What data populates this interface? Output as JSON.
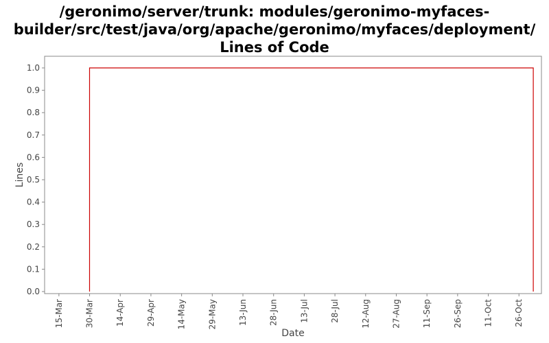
{
  "chart_data": {
    "type": "line",
    "title": "/geronimo/server/trunk: modules/geronimo-myfaces-builder/src/test/java/org/apache/geronimo/myfaces/deployment/ Lines of Code",
    "xlabel": "Date",
    "ylabel": "Lines",
    "ylim": [
      0,
      1.0
    ],
    "yticks": [
      "0.0",
      "0.1",
      "0.2",
      "0.3",
      "0.4",
      "0.5",
      "0.6",
      "0.7",
      "0.8",
      "0.9",
      "1.0"
    ],
    "xlim": [
      "2007-03-08",
      "2007-11-06"
    ],
    "xticks": [
      {
        "date": "2007-03-15",
        "label": "15-Mar"
      },
      {
        "date": "2007-03-30",
        "label": "30-Mar"
      },
      {
        "date": "2007-04-14",
        "label": "14-Apr"
      },
      {
        "date": "2007-04-29",
        "label": "29-Apr"
      },
      {
        "date": "2007-05-14",
        "label": "14-May"
      },
      {
        "date": "2007-05-29",
        "label": "29-May"
      },
      {
        "date": "2007-06-13",
        "label": "13-Jun"
      },
      {
        "date": "2007-06-28",
        "label": "28-Jun"
      },
      {
        "date": "2007-07-13",
        "label": "13-Jul"
      },
      {
        "date": "2007-07-28",
        "label": "28-Jul"
      },
      {
        "date": "2007-08-12",
        "label": "12-Aug"
      },
      {
        "date": "2007-08-27",
        "label": "27-Aug"
      },
      {
        "date": "2007-09-11",
        "label": "11-Sep"
      },
      {
        "date": "2007-09-26",
        "label": "26-Sep"
      },
      {
        "date": "2007-10-11",
        "label": "11-Oct"
      },
      {
        "date": "2007-10-26",
        "label": "26-Oct"
      }
    ],
    "grid": false,
    "series": [
      {
        "color": "#cc0000",
        "step": true,
        "points": [
          {
            "x": "2007-03-30",
            "y": 0
          },
          {
            "x": "2007-03-30",
            "y": 1
          },
          {
            "x": "2007-11-02",
            "y": 1
          },
          {
            "x": "2007-11-02",
            "y": 0
          }
        ]
      }
    ]
  }
}
